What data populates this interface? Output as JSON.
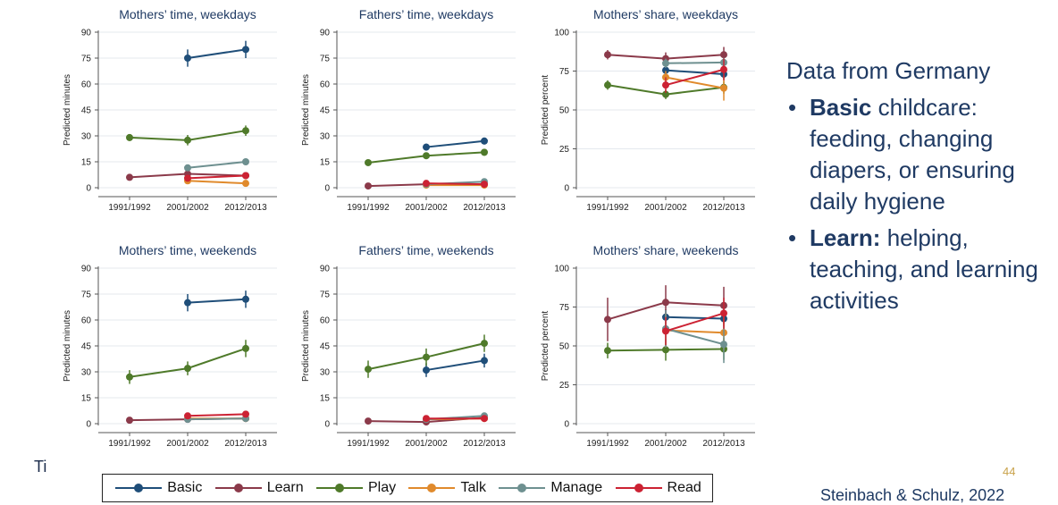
{
  "colors": {
    "Basic": "#1f4e79",
    "Learn": "#8b3a4a",
    "Play": "#4f7a2a",
    "Talk": "#e08a2c",
    "Manage": "#6e9090",
    "Read": "#cc2233"
  },
  "side": {
    "heading": "Data from Germany",
    "bullets": [
      {
        "bold": "Basic",
        "text": " childcare: feeding, changing diapers, or ensuring daily hygiene"
      },
      {
        "bold": "Learn:",
        "text": " helping, teaching, and learning activities"
      }
    ]
  },
  "legend": [
    "Basic",
    "Learn",
    "Play",
    "Talk",
    "Manage",
    "Read"
  ],
  "stub_text": "Ti",
  "page_number": "44",
  "citation": "Steinbach & Schulz, 2022",
  "chart_data": [
    {
      "type": "line",
      "title": "Mothers’ time, weekdays",
      "ylabel": "Predicted minutes",
      "ylim": [
        0,
        90
      ],
      "yticks": [
        0,
        15,
        30,
        45,
        60,
        75,
        90
      ],
      "categories": [
        "1991/1992",
        "2001/2002",
        "2012/2013"
      ],
      "series": [
        {
          "name": "Basic",
          "points": [
            [
              1,
              75,
              5
            ],
            [
              2,
              80,
              5
            ]
          ]
        },
        {
          "name": "Learn",
          "points": [
            [
              0,
              6,
              1
            ],
            [
              1,
              8,
              1.5
            ],
            [
              2,
              7,
              1.5
            ]
          ]
        },
        {
          "name": "Play",
          "points": [
            [
              0,
              29,
              2
            ],
            [
              1,
              27.5,
              3
            ],
            [
              2,
              33,
              3
            ]
          ]
        },
        {
          "name": "Talk",
          "points": [
            [
              1,
              4,
              1
            ],
            [
              2,
              2.5,
              1
            ]
          ]
        },
        {
          "name": "Manage",
          "points": [
            [
              1,
              11.5,
              1.5
            ],
            [
              2,
              15,
              2
            ]
          ]
        },
        {
          "name": "Read",
          "points": [
            [
              1,
              5.5,
              1
            ],
            [
              2,
              7,
              1
            ]
          ]
        }
      ]
    },
    {
      "type": "line",
      "title": "Fathers’ time, weekdays",
      "ylabel": "Predicted minutes",
      "ylim": [
        0,
        90
      ],
      "yticks": [
        0,
        15,
        30,
        45,
        60,
        75,
        90
      ],
      "categories": [
        "1991/1992",
        "2001/2002",
        "2012/2013"
      ],
      "series": [
        {
          "name": "Basic",
          "points": [
            [
              1,
              23.5,
              2
            ],
            [
              2,
              27,
              2
            ]
          ]
        },
        {
          "name": "Learn",
          "points": [
            [
              0,
              1,
              0.5
            ],
            [
              1,
              2,
              0.5
            ],
            [
              2,
              2,
              0.5
            ]
          ]
        },
        {
          "name": "Play",
          "points": [
            [
              0,
              14.5,
              1
            ],
            [
              1,
              18.5,
              1.5
            ],
            [
              2,
              20.5,
              2
            ]
          ]
        },
        {
          "name": "Talk",
          "points": [
            [
              1,
              1.5,
              0.5
            ],
            [
              2,
              1.5,
              0.5
            ]
          ]
        },
        {
          "name": "Manage",
          "points": [
            [
              1,
              2,
              0.5
            ],
            [
              2,
              3.5,
              1
            ]
          ]
        },
        {
          "name": "Read",
          "points": [
            [
              1,
              2.5,
              0.5
            ],
            [
              2,
              2,
              0.5
            ]
          ]
        }
      ]
    },
    {
      "type": "line",
      "title": "Mothers’ share, weekdays",
      "ylabel": "Predicted percent",
      "ylim": [
        0,
        100
      ],
      "yticks": [
        0,
        25,
        50,
        75,
        100
      ],
      "categories": [
        "1991/1992",
        "2001/2002",
        "2012/2013"
      ],
      "series": [
        {
          "name": "Basic",
          "points": [
            [
              1,
              75.5,
              3
            ],
            [
              2,
              73,
              3
            ]
          ]
        },
        {
          "name": "Learn",
          "points": [
            [
              0,
              85.5,
              3
            ],
            [
              1,
              83,
              4
            ],
            [
              2,
              85.5,
              5
            ]
          ]
        },
        {
          "name": "Play",
          "points": [
            [
              0,
              66,
              3
            ],
            [
              1,
              60,
              3
            ],
            [
              2,
              64.5,
              4
            ]
          ]
        },
        {
          "name": "Talk",
          "points": [
            [
              1,
              71,
              4
            ],
            [
              2,
              64,
              8
            ]
          ]
        },
        {
          "name": "Manage",
          "points": [
            [
              1,
              80,
              3
            ],
            [
              2,
              80.5,
              3
            ]
          ]
        },
        {
          "name": "Read",
          "points": [
            [
              1,
              66,
              5
            ],
            [
              2,
              76,
              7
            ]
          ]
        }
      ]
    },
    {
      "type": "line",
      "title": "Mothers’ time, weekends",
      "ylabel": "Predicted minutes",
      "ylim": [
        0,
        90
      ],
      "yticks": [
        0,
        15,
        30,
        45,
        60,
        75,
        90
      ],
      "categories": [
        "1991/1992",
        "2001/2002",
        "2012/2013"
      ],
      "series": [
        {
          "name": "Basic",
          "points": [
            [
              1,
              70,
              5
            ],
            [
              2,
              72,
              5
            ]
          ]
        },
        {
          "name": "Learn",
          "points": [
            [
              0,
              2,
              0.5
            ],
            [
              1,
              2.5,
              0.5
            ],
            [
              2,
              3,
              0.5
            ]
          ]
        },
        {
          "name": "Play",
          "points": [
            [
              0,
              27,
              4
            ],
            [
              1,
              32,
              4
            ],
            [
              2,
              43.5,
              5
            ]
          ]
        },
        {
          "name": "Talk",
          "points": [
            [
              1,
              3,
              0.5
            ],
            [
              2,
              3,
              0.5
            ]
          ]
        },
        {
          "name": "Manage",
          "points": [
            [
              1,
              2.5,
              0.5
            ],
            [
              2,
              3,
              1
            ]
          ]
        },
        {
          "name": "Read",
          "points": [
            [
              1,
              4.5,
              1
            ],
            [
              2,
              5.5,
              1
            ]
          ]
        }
      ]
    },
    {
      "type": "line",
      "title": "Fathers’ time, weekends",
      "ylabel": "Predicted minutes",
      "ylim": [
        0,
        90
      ],
      "yticks": [
        0,
        15,
        30,
        45,
        60,
        75,
        90
      ],
      "categories": [
        "1991/1992",
        "2001/2002",
        "2012/2013"
      ],
      "series": [
        {
          "name": "Basic",
          "points": [
            [
              1,
              31,
              4
            ],
            [
              2,
              36.5,
              4
            ]
          ]
        },
        {
          "name": "Learn",
          "points": [
            [
              0,
              1.5,
              0.5
            ],
            [
              1,
              1,
              0.5
            ],
            [
              2,
              3.5,
              1
            ]
          ]
        },
        {
          "name": "Play",
          "points": [
            [
              0,
              31.5,
              5
            ],
            [
              1,
              38.5,
              5
            ],
            [
              2,
              46.5,
              5
            ]
          ]
        },
        {
          "name": "Talk",
          "points": [
            [
              1,
              2.5,
              0.5
            ],
            [
              2,
              3,
              0.5
            ]
          ]
        },
        {
          "name": "Manage",
          "points": [
            [
              1,
              2.5,
              0.5
            ],
            [
              2,
              4.5,
              1
            ]
          ]
        },
        {
          "name": "Read",
          "points": [
            [
              1,
              3,
              0.5
            ],
            [
              2,
              3,
              0.5
            ]
          ]
        }
      ]
    },
    {
      "type": "line",
      "title": "Mothers’ share, weekends",
      "ylabel": "Predicted percent",
      "ylim": [
        0,
        100
      ],
      "yticks": [
        0,
        25,
        50,
        75,
        100
      ],
      "categories": [
        "1991/1992",
        "2001/2002",
        "2012/2013"
      ],
      "series": [
        {
          "name": "Basic",
          "points": [
            [
              1,
              68.5,
              5
            ],
            [
              2,
              67.5,
              5
            ]
          ]
        },
        {
          "name": "Learn",
          "points": [
            [
              0,
              67,
              14
            ],
            [
              1,
              78,
              11
            ],
            [
              2,
              76,
              12
            ]
          ]
        },
        {
          "name": "Play",
          "points": [
            [
              0,
              47,
              5
            ],
            [
              1,
              47.5,
              7
            ],
            [
              2,
              48,
              7
            ]
          ]
        },
        {
          "name": "Talk",
          "points": [
            [
              1,
              60,
              11
            ],
            [
              2,
              58.5,
              11
            ]
          ]
        },
        {
          "name": "Manage",
          "points": [
            [
              1,
              61,
              12
            ],
            [
              2,
              51,
              12
            ]
          ]
        },
        {
          "name": "Read",
          "points": [
            [
              1,
              59.5,
              9
            ],
            [
              2,
              71,
              10
            ]
          ]
        }
      ]
    }
  ]
}
